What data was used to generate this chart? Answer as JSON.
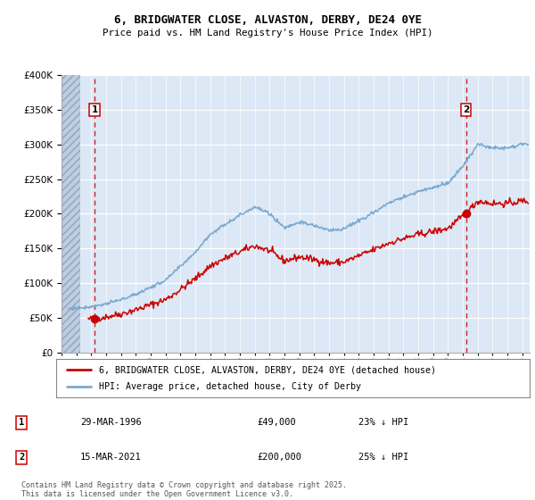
{
  "title": "6, BRIDGWATER CLOSE, ALVASTON, DERBY, DE24 0YE",
  "subtitle": "Price paid vs. HM Land Registry's House Price Index (HPI)",
  "red_label": "6, BRIDGWATER CLOSE, ALVASTON, DERBY, DE24 0YE (detached house)",
  "blue_label": "HPI: Average price, detached house, City of Derby",
  "transactions": [
    {
      "num": 1,
      "date": "29-MAR-1996",
      "price": 49000,
      "pct": "23% ↓ HPI",
      "x_year": 1996.22
    },
    {
      "num": 2,
      "date": "15-MAR-2021",
      "price": 200000,
      "pct": "25% ↓ HPI",
      "x_year": 2021.21
    }
  ],
  "footnote": "Contains HM Land Registry data © Crown copyright and database right 2025.\nThis data is licensed under the Open Government Licence v3.0.",
  "ylim": [
    0,
    400000
  ],
  "xlim": [
    1994.0,
    2025.5
  ],
  "hatch_end": 1995.25,
  "bg_color": "#dce8f5",
  "grid_color": "#ffffff",
  "red_color": "#cc0000",
  "blue_color": "#7aaad0",
  "hpi_years": [
    1994,
    1995,
    1996,
    1997,
    1998,
    1999,
    2000,
    2001,
    2002,
    2003,
    2004,
    2005,
    2006,
    2007,
    2008,
    2009,
    2010,
    2011,
    2012,
    2013,
    2014,
    2015,
    2016,
    2017,
    2018,
    2019,
    2020,
    2021,
    2022,
    2023,
    2024,
    2025
  ],
  "hpi_vals": [
    62000,
    64000,
    66000,
    70000,
    76000,
    84000,
    94000,
    104000,
    124000,
    145000,
    170000,
    185000,
    198000,
    210000,
    200000,
    180000,
    188000,
    183000,
    176000,
    178000,
    190000,
    202000,
    215000,
    224000,
    232000,
    238000,
    244000,
    268000,
    300000,
    295000,
    295000,
    300000
  ],
  "noise_seed_red": 42,
  "noise_seed_blue": 77,
  "noise_red": 2500,
  "noise_blue": 1200
}
